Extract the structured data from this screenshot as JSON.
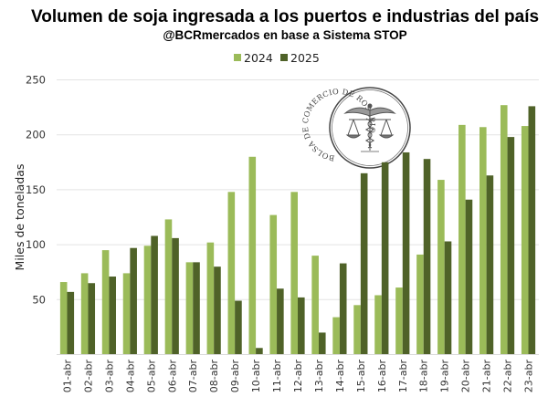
{
  "chart_data": {
    "type": "bar",
    "title": "Volumen de soja ingresada a los puertos e industrias del país",
    "subtitle": "@BCRmercados en base a Sistema STOP",
    "xlabel": "",
    "ylabel": "Miles de toneladas",
    "ylim": [
      0,
      250
    ],
    "yticks": [
      "50",
      "100",
      "150",
      "200",
      "250"
    ],
    "ytick_values": [
      50,
      100,
      150,
      200,
      250
    ],
    "grid": true,
    "legend_position": "top-center",
    "categories": [
      "01-abr",
      "02-abr",
      "03-abr",
      "04-abr",
      "05-abr",
      "06-abr",
      "07-abr",
      "08-abr",
      "09-abr",
      "10-abr",
      "11-abr",
      "12-abr",
      "13-abr",
      "14-abr",
      "15-abr",
      "16-abr",
      "17-abr",
      "18-abr",
      "19-abr",
      "20-abr",
      "21-abr",
      "22-abr",
      "23-abr"
    ],
    "series": [
      {
        "name": "2024",
        "color": "#9bbb59",
        "values": [
          66,
          74,
          95,
          74,
          99,
          123,
          84,
          102,
          148,
          180,
          127,
          148,
          90,
          34,
          45,
          54,
          61,
          91,
          159,
          209,
          207,
          227,
          208
        ]
      },
      {
        "name": "2025",
        "color": "#4f6228",
        "values": [
          57,
          65,
          71,
          97,
          108,
          106,
          84,
          80,
          49,
          6,
          60,
          52,
          20,
          83,
          165,
          175,
          184,
          178,
          103,
          141,
          163,
          198,
          226
        ]
      }
    ]
  },
  "watermark": {
    "text": "BOLSA DE COMERCIO DE ROSARIO",
    "icon": "caduceus-scales-icon"
  }
}
